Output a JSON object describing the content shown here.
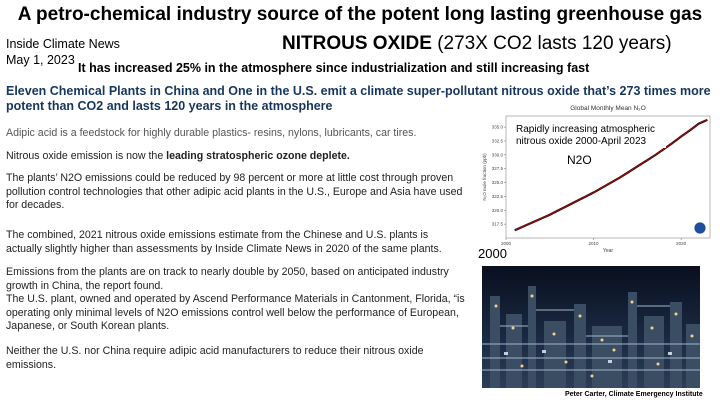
{
  "header": {
    "title": "A petro-chemical industry source of the potent long lasting greenhouse gas",
    "publication": "Inside Climate News",
    "date": "May 1, 2023",
    "gas_name": "NITROUS OXIDE",
    "gas_note": "(273X CO2 lasts 120 years)",
    "increase": "It has increased 25% in the atmosphere since industrialization and still increasing fast"
  },
  "lead": "Eleven Chemical Plants in China and One in the U.S. emit a climate super-pollutant nitrous oxide that’s 273 times more potent than CO2 and lasts 120 years in the atmosphere",
  "paragraphs": {
    "p1": "Adipic acid is a feedstock for highly durable plastics-  resins, nylons, lubricants, car tires.",
    "p2_pre": "Nitrous oxide emission is now the ",
    "p2_bold": "leading stratospheric ozone deplete.",
    "p3": "The plants’ N2O emissions could be reduced by 98 percent or more at little cost through proven pollution control technologies that other adipic acid plants in the U.S., Europe and Asia have used for decades.",
    "p4": "The combined, 2021 nitrous oxide emissions estimate from the Chinese and U.S. plants is actually slightly higher than assessments by Inside Climate News in 2020 of the same plants.",
    "p5a": "Emissions from the plants are on track to nearly double by 2050, based on anticipated industry growth in China, the report found.",
    "p5b": "The U.S. plant, owned and operated by Ascend Performance Materials in Cantonment, Florida, “is operating only minimal levels of N2O emissions control well below the performance of European, Japanese, or South Korean plants.",
    "p6": "Neither the U.S. nor China require adipic acid manufacturers to reduce their nitrous oxide emissions."
  },
  "chart_note": "Rapidly increasing atmospheric nitrous oxide 2000-April 2023",
  "chart_series_label": "N2O",
  "chart_year_start": "2000",
  "credit": "Peter Carter, Climate Emergency Institute",
  "chart_data": {
    "type": "line",
    "title": "Global Monthly Mean N₂O",
    "xlabel": "Year",
    "ylabel": "N₂O mole fraction (ppb)",
    "xlim": [
      2000,
      2023.3
    ],
    "ylim": [
      315,
      337
    ],
    "xticks": [
      2000,
      2010,
      2020
    ],
    "yticks": [
      317.5,
      320.0,
      322.5,
      325.0,
      327.5,
      330.0,
      332.5,
      335.0
    ],
    "grid": false,
    "series": [
      {
        "color": "#cc0000",
        "x": [
          2001,
          2002,
          2003,
          2004,
          2005,
          2006,
          2007,
          2008,
          2009,
          2010,
          2011,
          2012,
          2013,
          2014,
          2015,
          2016,
          2017,
          2018,
          2019,
          2020,
          2021,
          2022,
          2023
        ],
        "values": [
          316.4,
          317.1,
          317.8,
          318.5,
          319.2,
          320.0,
          320.8,
          321.6,
          322.4,
          323.2,
          324.1,
          325.0,
          325.9,
          326.9,
          327.9,
          328.9,
          329.9,
          331.0,
          332.1,
          333.3,
          334.4,
          335.6,
          336.3
        ]
      }
    ]
  }
}
